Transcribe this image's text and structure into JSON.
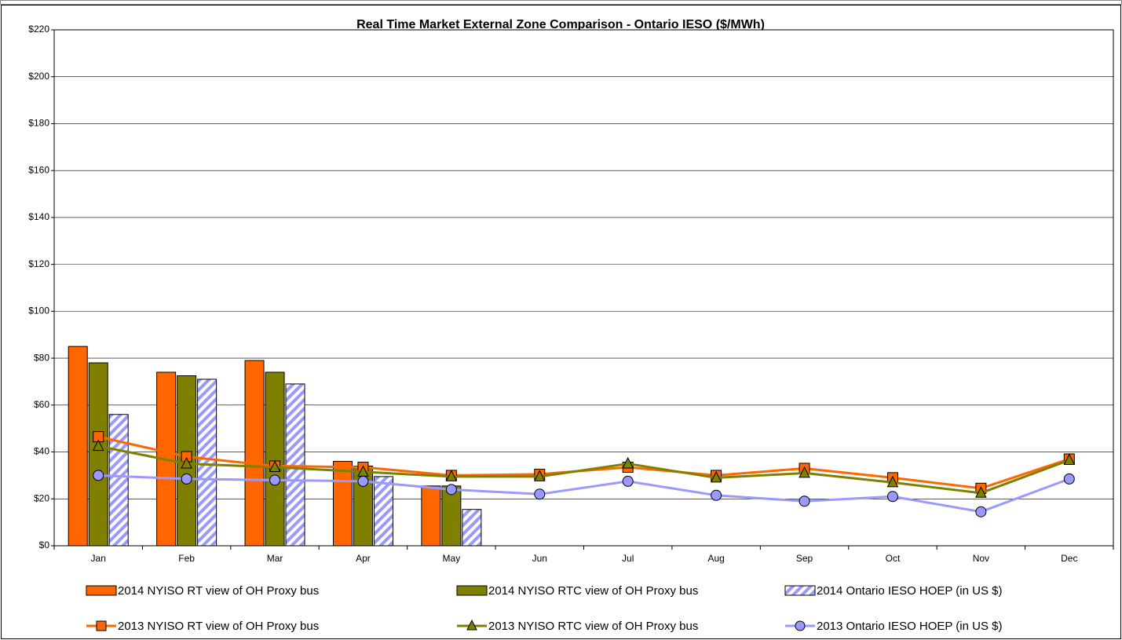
{
  "chart_data": {
    "type": "combo",
    "title": "Real Time Market External Zone Comparison - Ontario IESO ($/MWh)",
    "categories": [
      "Jan",
      "Feb",
      "Mar",
      "Apr",
      "May",
      "Jun",
      "Jul",
      "Aug",
      "Sep",
      "Oct",
      "Nov",
      "Dec"
    ],
    "ylim": [
      0,
      220
    ],
    "yticks": [
      {
        "value": 0,
        "label": "$0"
      },
      {
        "value": 20,
        "label": "$20"
      },
      {
        "value": 40,
        "label": "$40"
      },
      {
        "value": 60,
        "label": "$60"
      },
      {
        "value": 80,
        "label": "$80"
      },
      {
        "value": 100,
        "label": "$100"
      },
      {
        "value": 120,
        "label": "$120"
      },
      {
        "value": 140,
        "label": "$140"
      },
      {
        "value": 160,
        "label": "$160"
      },
      {
        "value": 180,
        "label": "$180"
      },
      {
        "value": 200,
        "label": "$200"
      },
      {
        "value": 220,
        "label": "$220"
      }
    ],
    "grid": true,
    "legend": "bottom",
    "series": [
      {
        "name": "2014 NYISO RT view of OH Proxy bus",
        "type": "bar",
        "color": "#ff6600",
        "values": [
          85,
          74,
          79,
          36,
          25.5,
          null,
          null,
          null,
          null,
          null,
          null,
          null
        ]
      },
      {
        "name": "2014 NYISO RTC view of OH Proxy bus",
        "type": "bar",
        "color": "#808000",
        "values": [
          78,
          72.5,
          74,
          34,
          25.5,
          null,
          null,
          null,
          null,
          null,
          null,
          null
        ]
      },
      {
        "name": "2014 Ontario IESO HOEP (in US $)",
        "type": "bar",
        "color": "#9999ff",
        "pattern": "hatch",
        "values": [
          56,
          71,
          69,
          29.5,
          15.5,
          null,
          null,
          null,
          null,
          null,
          null,
          null
        ]
      },
      {
        "name": "2013 NYISO RT view of OH Proxy bus",
        "type": "line",
        "marker": "square",
        "color": "#ff6600",
        "values": [
          46.5,
          38,
          34,
          33.5,
          30,
          30.5,
          33.5,
          30,
          33,
          29,
          24.5,
          37
        ]
      },
      {
        "name": "2013 NYISO RTC view of OH Proxy bus",
        "type": "line",
        "marker": "triangle",
        "color": "#808000",
        "values": [
          42.5,
          35,
          33.5,
          31.5,
          29.5,
          29.5,
          35,
          29,
          31,
          27,
          22.5,
          36.5
        ]
      },
      {
        "name": "2013 Ontario IESO HOEP (in US $)",
        "type": "line",
        "marker": "circle",
        "color": "#9999ff",
        "values": [
          30,
          28.5,
          28,
          27.5,
          24,
          22,
          27.5,
          21.5,
          19,
          21,
          14.5,
          28.5
        ]
      }
    ]
  }
}
